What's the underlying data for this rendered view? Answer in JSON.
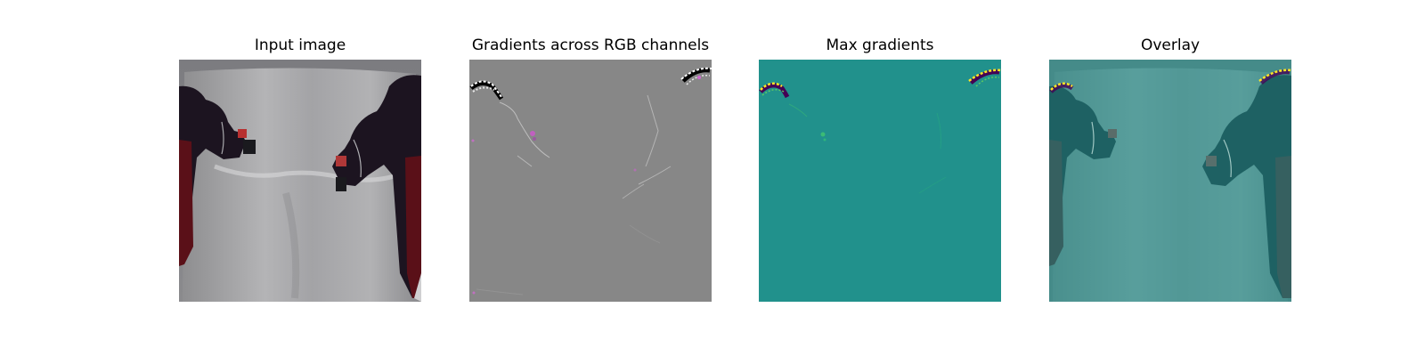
{
  "figure": {
    "panels": [
      {
        "title": "Input image",
        "image": "robot-arms-in-front-of-white-cloth"
      },
      {
        "title": "Gradients across RGB channels",
        "image": "rgb-gradient-map-gray"
      },
      {
        "title": "Max gradients",
        "image": "max-gradient-heatmap-teal"
      },
      {
        "title": "Overlay",
        "image": "gradient-overlay-on-input"
      }
    ],
    "colors": {
      "gradient_gray": "#878787",
      "heatmap_teal": "#21918c",
      "overlay_tint": "#2a7f7a"
    }
  }
}
